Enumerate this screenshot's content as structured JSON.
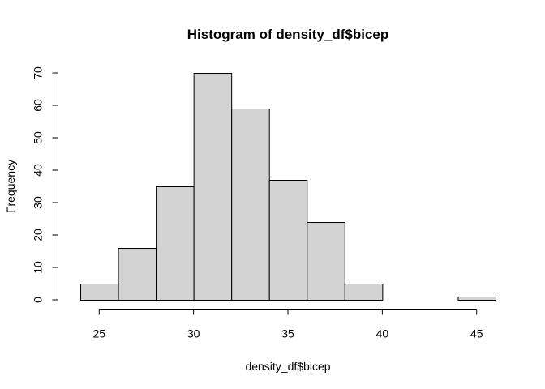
{
  "chart_data": {
    "type": "histogram",
    "title": "Histogram of density_df$bicep",
    "xlabel": "density_df$bicep",
    "ylabel": "Frequency",
    "bins": [
      {
        "start": 24,
        "end": 26,
        "count": 5
      },
      {
        "start": 26,
        "end": 28,
        "count": 16
      },
      {
        "start": 28,
        "end": 30,
        "count": 35
      },
      {
        "start": 30,
        "end": 32,
        "count": 70
      },
      {
        "start": 32,
        "end": 34,
        "count": 59
      },
      {
        "start": 34,
        "end": 36,
        "count": 37
      },
      {
        "start": 36,
        "end": 38,
        "count": 24
      },
      {
        "start": 38,
        "end": 40,
        "count": 5
      },
      {
        "start": 40,
        "end": 42,
        "count": 0
      },
      {
        "start": 42,
        "end": 44,
        "count": 0
      },
      {
        "start": 44,
        "end": 46,
        "count": 1
      }
    ],
    "xlim": [
      24,
      46
    ],
    "ylim": [
      0,
      70
    ],
    "x_ticks": [
      25,
      30,
      35,
      40,
      45
    ],
    "y_ticks": [
      0,
      10,
      20,
      30,
      40,
      50,
      60,
      70
    ],
    "bar_fill": "#d3d3d3",
    "bar_stroke": "#000000",
    "grid": false
  }
}
